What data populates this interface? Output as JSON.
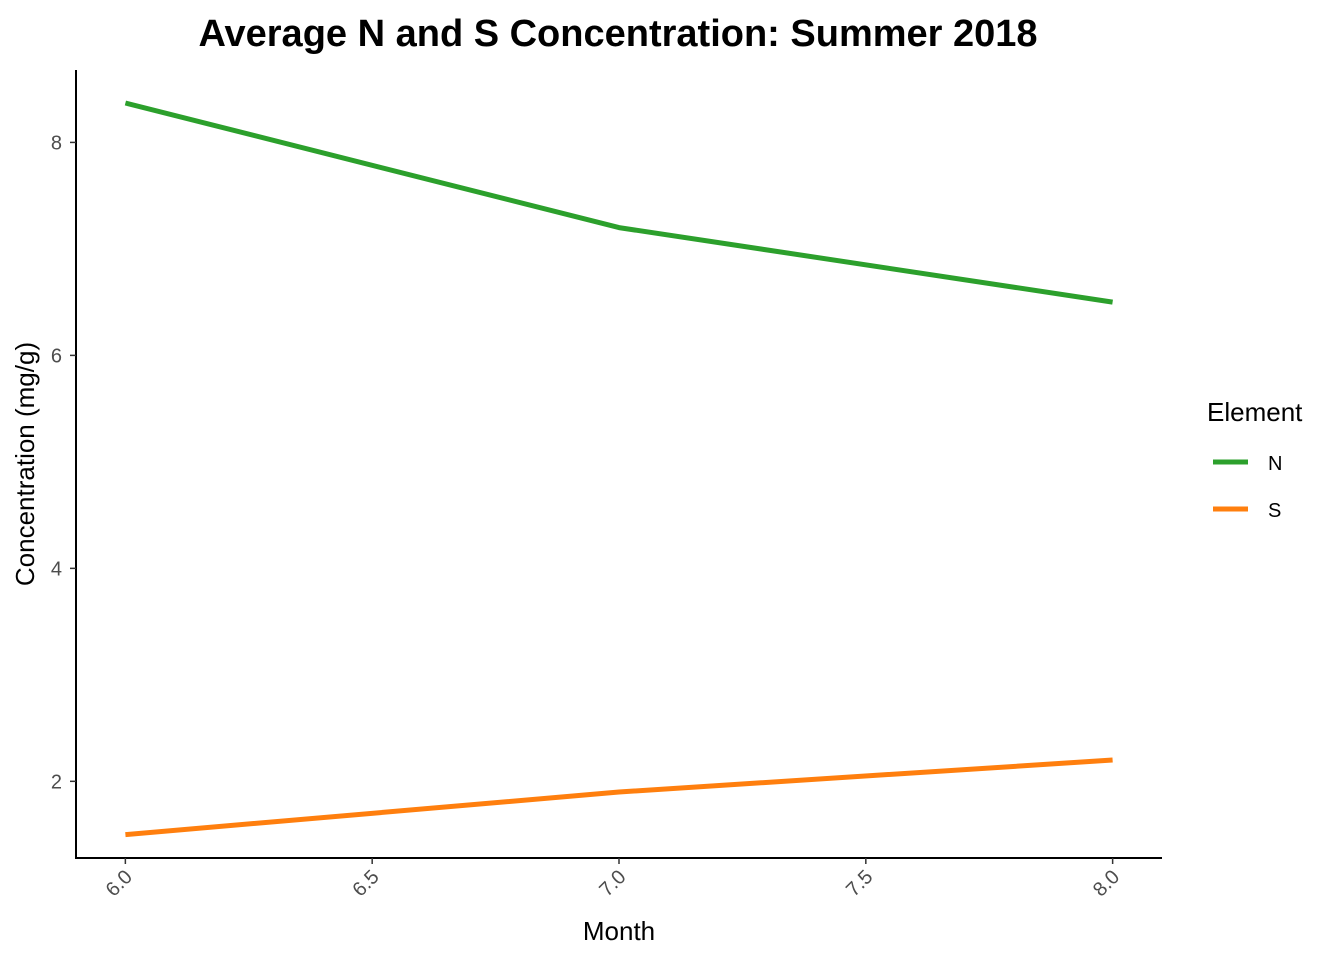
{
  "chart_data": {
    "type": "line",
    "title": "Average N and S Concentration: Summer 2018",
    "xlabel": "Month",
    "ylabel": "Concentration (mg/g)",
    "x": [
      6.0,
      7.0,
      8.0
    ],
    "xlim": [
      5.9,
      8.1
    ],
    "ylim": [
      1.28,
      8.68
    ],
    "x_ticks": [
      6.0,
      6.5,
      7.0,
      7.5,
      8.0
    ],
    "x_tick_labels": [
      "6.0",
      "6.5",
      "7.0",
      "7.5",
      "8.0"
    ],
    "y_ticks": [
      2,
      4,
      6,
      8
    ],
    "y_tick_labels": [
      "2",
      "4",
      "6",
      "8"
    ],
    "grid": false,
    "legend": {
      "title": "Element",
      "position": "right"
    },
    "series": [
      {
        "name": "N",
        "values": [
          8.37,
          7.2,
          6.5
        ],
        "color": "#2ca02c"
      },
      {
        "name": "S",
        "values": [
          1.5,
          1.9,
          2.2
        ],
        "color": "#ff7f0e"
      }
    ]
  }
}
